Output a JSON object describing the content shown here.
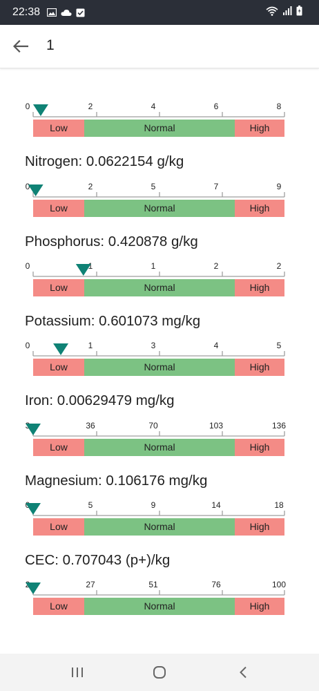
{
  "status_bar": {
    "time": "22:38",
    "left_icons": [
      "image-icon",
      "cloud-icon",
      "checkbox-icon"
    ],
    "right_icons": [
      "wifi-icon",
      "signal-icon",
      "battery-icon"
    ]
  },
  "app_bar": {
    "back_icon": "arrow-back-icon",
    "title": "1"
  },
  "colors": {
    "low": "#f48b86",
    "normal": "#7cc283",
    "high": "#f48b86",
    "marker": "#0f8275",
    "axis": "#9e9e9e"
  },
  "gauges": [
    {
      "id": "first",
      "title": "",
      "ticks": [
        "0",
        "2",
        "4",
        "6",
        "8"
      ],
      "value_fraction": 0.03,
      "bands": {
        "low": "Low",
        "normal": "Normal",
        "high": "High"
      }
    },
    {
      "id": "nitrogen",
      "title": "Nitrogen: 0.0622154 g/kg",
      "ticks": [
        "0",
        "2",
        "5",
        "7",
        "9"
      ],
      "value_fraction": 0.01,
      "bands": {
        "low": "Low",
        "normal": "Normal",
        "high": "High"
      }
    },
    {
      "id": "phosphorus",
      "title": "Phosphorus: 0.420878 g/kg",
      "ticks": [
        "0",
        "1",
        "1",
        "2",
        "2"
      ],
      "value_fraction": 0.2,
      "bands": {
        "low": "Low",
        "normal": "Normal",
        "high": "High"
      }
    },
    {
      "id": "potassium",
      "title": "Potassium: 0.601073 mg/kg",
      "ticks": [
        "0",
        "1",
        "3",
        "4",
        "5"
      ],
      "value_fraction": 0.11,
      "bands": {
        "low": "Low",
        "normal": "Normal",
        "high": "High"
      }
    },
    {
      "id": "iron",
      "title": "Iron: 0.00629479 mg/kg",
      "ticks": [
        "3",
        "36",
        "70",
        "103",
        "136"
      ],
      "value_fraction": 0.0,
      "bands": {
        "low": "Low",
        "normal": "Normal",
        "high": "High"
      }
    },
    {
      "id": "magnesium",
      "title": "Magnesium: 0.106176 mg/kg",
      "ticks": [
        "0",
        "5",
        "9",
        "14",
        "18"
      ],
      "value_fraction": 0.0,
      "bands": {
        "low": "Low",
        "normal": "Normal",
        "high": "High"
      }
    },
    {
      "id": "cec",
      "title": "CEC: 0.707043 (p+)/kg",
      "ticks": [
        "2",
        "27",
        "51",
        "76",
        "100"
      ],
      "value_fraction": 0.0,
      "bands": {
        "low": "Low",
        "normal": "Normal",
        "high": "High"
      }
    }
  ],
  "nav_bar": {
    "buttons": [
      "recent-apps-icon",
      "home-icon",
      "back-icon"
    ]
  }
}
